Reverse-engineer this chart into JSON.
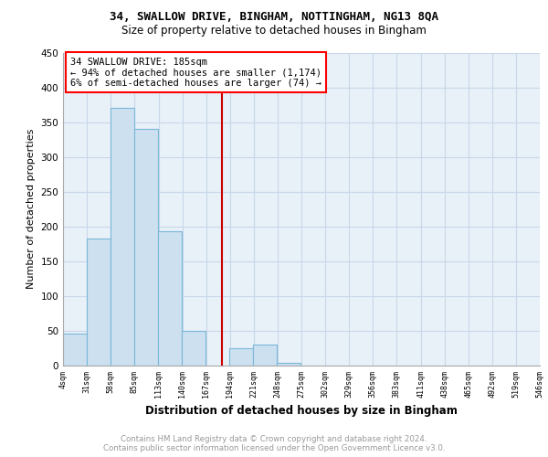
{
  "title": "34, SWALLOW DRIVE, BINGHAM, NOTTINGHAM, NG13 8QA",
  "subtitle": "Size of property relative to detached houses in Bingham",
  "xlabel": "Distribution of detached houses by size in Bingham",
  "ylabel": "Number of detached properties",
  "property_size": 185,
  "annotation_line1": "34 SWALLOW DRIVE: 185sqm",
  "annotation_line2": "← 94% of detached houses are smaller (1,174)",
  "annotation_line3": "6% of semi-detached houses are larger (74) →",
  "bins_left": [
    4,
    31,
    58,
    85,
    112,
    139,
    166,
    193,
    220,
    247,
    274,
    301,
    328,
    355,
    382,
    409,
    436,
    463,
    490,
    517
  ],
  "bin_width": 27,
  "bar_heights": [
    46,
    182,
    370,
    340,
    193,
    50,
    0,
    25,
    30,
    4,
    0,
    0,
    0,
    0,
    0,
    0,
    0,
    0,
    0,
    0
  ],
  "bar_color": "#cce0f0",
  "bar_edgecolor": "#7ab8d8",
  "vline_x": 185,
  "vline_color": "#cc0000",
  "ylim": [
    0,
    450
  ],
  "xlim": [
    4,
    546
  ],
  "xtick_labels": [
    "4sqm",
    "31sqm",
    "58sqm",
    "85sqm",
    "113sqm",
    "140sqm",
    "167sqm",
    "194sqm",
    "221sqm",
    "248sqm",
    "275sqm",
    "302sqm",
    "329sqm",
    "356sqm",
    "383sqm",
    "411sqm",
    "438sqm",
    "465sqm",
    "492sqm",
    "519sqm",
    "546sqm"
  ],
  "xtick_positions": [
    4,
    31,
    58,
    85,
    113,
    140,
    167,
    194,
    221,
    248,
    275,
    302,
    329,
    356,
    383,
    411,
    438,
    465,
    492,
    519,
    546
  ],
  "ytick_vals": [
    0,
    50,
    100,
    150,
    200,
    250,
    300,
    350,
    400,
    450
  ],
  "grid_color": "#c8d8e8",
  "footer_line1": "Contains HM Land Registry data © Crown copyright and database right 2024.",
  "footer_line2": "Contains public sector information licensed under the Open Government Licence v3.0.",
  "bg_color": "#e8f0f8"
}
